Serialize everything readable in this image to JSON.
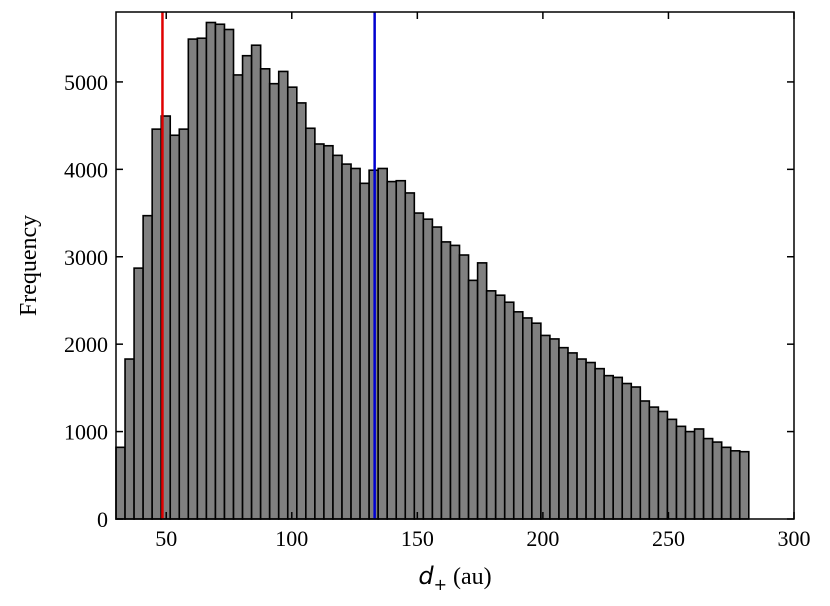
{
  "chart_data": {
    "type": "bar",
    "title": "",
    "xlabel_symbol": "d",
    "xlabel_subscript": "+",
    "xlabel_unit": " (au)",
    "ylabel": "Frequency",
    "xlim": [
      30,
      300
    ],
    "ylim": [
      0,
      5800
    ],
    "x_ticks": [
      50,
      100,
      150,
      200,
      250,
      300
    ],
    "y_ticks": [
      0,
      1000,
      2000,
      3000,
      4000,
      5000
    ],
    "bin_start": 30,
    "bin_width": 3.6,
    "values": [
      820,
      1830,
      2870,
      3470,
      4460,
      4610,
      4390,
      4460,
      5490,
      5500,
      5680,
      5660,
      5600,
      5080,
      5300,
      5420,
      5150,
      4980,
      5120,
      4940,
      4760,
      4470,
      4290,
      4270,
      4160,
      4060,
      4010,
      3840,
      3990,
      4010,
      3860,
      3870,
      3730,
      3500,
      3430,
      3340,
      3170,
      3130,
      3020,
      2730,
      2930,
      2610,
      2560,
      2480,
      2370,
      2300,
      2240,
      2100,
      2060,
      1960,
      1900,
      1830,
      1790,
      1720,
      1640,
      1620,
      1550,
      1510,
      1350,
      1280,
      1230,
      1140,
      1060,
      1000,
      1030,
      920,
      880,
      820,
      780,
      770
    ],
    "bar_color": "#808080",
    "edge_color": "#000000",
    "vlines": [
      {
        "x": 48.5,
        "color": "#e00000"
      },
      {
        "x": 133,
        "color": "#0000d0"
      }
    ],
    "grid": false
  }
}
